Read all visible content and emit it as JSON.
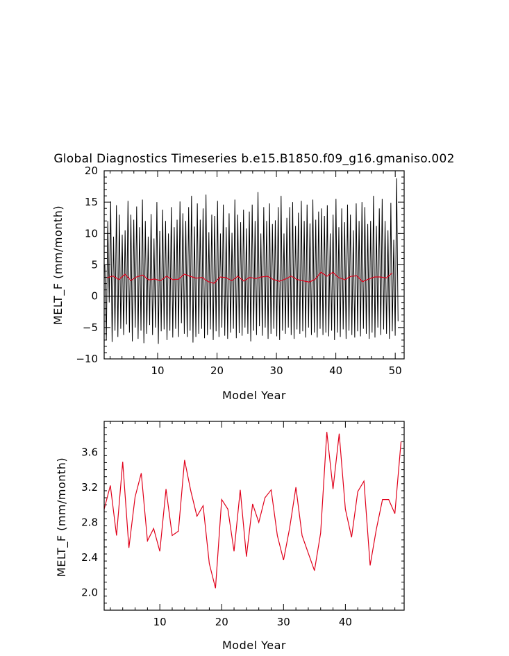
{
  "title": "Global Diagnostics Timeseries b.e15.B1850.f09_g16.gmaniso.002",
  "colors": {
    "monthly": "#000000",
    "annual": "#e0001a",
    "axis": "#000000"
  },
  "chart_data": [
    {
      "type": "line",
      "xlabel": "Model Year",
      "ylabel": "MELT_F (mm/month)",
      "xlim": [
        1,
        51.5
      ],
      "ylim": [
        -10,
        20
      ],
      "xticks": [
        "10",
        "20",
        "30",
        "40",
        "50"
      ],
      "yticks": [
        "−10",
        "−5",
        "0",
        "5",
        "10",
        "15",
        "20"
      ],
      "zero_line": true,
      "monthly_peaks": [
        5.0,
        12.0,
        15.1,
        9.5,
        14.5,
        13.0,
        9.8,
        10.5,
        15.2,
        13.0,
        12.2,
        14.3,
        11.0,
        15.4,
        12.0,
        9.5,
        13.1,
        9.2,
        15.0,
        10.4,
        13.8,
        12.0,
        10.0,
        14.2,
        11.0,
        12.2,
        15.1,
        13.2,
        12.0,
        14.2,
        16.0,
        11.1,
        14.8,
        12.2,
        14.0,
        16.2,
        10.2,
        13.0,
        12.8,
        15.2,
        10.0,
        14.6,
        11.0,
        13.2,
        10.1,
        15.4,
        13.0,
        11.8,
        13.8,
        10.8,
        13.5,
        14.6,
        12.0,
        16.6,
        10.0,
        14.2,
        12.0,
        14.8,
        11.5,
        12.1,
        14.2,
        16.0,
        10.0,
        12.5,
        14.2,
        15.0,
        11.2,
        13.3,
        15.2,
        12.0,
        14.6,
        11.6,
        15.4,
        12.2,
        13.5,
        14.0,
        12.8,
        14.5,
        10.0,
        13.0,
        15.5,
        11.0,
        14.0,
        11.8,
        14.6,
        13.0,
        10.5,
        14.8,
        12.0,
        15.0,
        14.2,
        11.5,
        12.0,
        16.0,
        11.2,
        14.0,
        15.5,
        12.0,
        10.5,
        14.9,
        9.0,
        18.8
      ],
      "monthly_troughs": [
        -7.0,
        -1.0,
        -7.3,
        -5.5,
        -6.5,
        -5.2,
        -6.2,
        -4.5,
        -5.8,
        -7.2,
        -5.0,
        -6.8,
        -5.5,
        -7.5,
        -6.0,
        -4.6,
        -6.2,
        -5.0,
        -7.6,
        -5.6,
        -5.3,
        -7.0,
        -5.5,
        -6.6,
        -5.2,
        -6.5,
        -4.3,
        -6.0,
        -6.5,
        -5.5,
        -7.4,
        -6.5,
        -6.0,
        -5.2,
        -6.7,
        -6.2,
        -5.3,
        -7.0,
        -5.6,
        -6.5,
        -5.0,
        -6.3,
        -6.8,
        -5.8,
        -5.2,
        -6.7,
        -5.9,
        -6.3,
        -5.0,
        -6.0,
        -7.2,
        -5.5,
        -6.2,
        -4.8,
        -6.3,
        -5.0,
        -6.8,
        -6.0,
        -5.2,
        -6.4,
        -7.0,
        -5.5,
        -6.0,
        -5.0,
        -6.2,
        -6.8,
        -5.3,
        -6.0,
        -5.6,
        -6.6,
        -5.0,
        -6.2,
        -5.8,
        -6.6,
        -5.2,
        -6.2,
        -5.8,
        -6.4,
        -5.5,
        -7.0,
        -5.8,
        -6.5,
        -5.3,
        -6.8,
        -5.5,
        -6.2,
        -6.6,
        -5.6,
        -6.4,
        -5.2,
        -6.0,
        -6.8,
        -5.8,
        -6.6,
        -5.0,
        -6.2,
        -5.3,
        -6.0,
        -6.8,
        -5.6,
        -6.3,
        -4.0
      ],
      "series": [
        {
          "values": [
            2.95,
            3.22,
            2.65,
            3.49,
            2.51,
            3.09,
            3.36,
            2.59,
            2.73,
            2.47,
            3.18,
            2.65,
            2.7,
            3.51,
            3.16,
            2.87,
            2.99,
            2.33,
            2.05,
            3.06,
            2.95,
            2.47,
            3.17,
            2.41,
            3.01,
            2.8,
            3.08,
            3.17,
            2.65,
            2.37,
            2.74,
            3.2,
            2.65,
            2.45,
            2.25,
            2.68,
            3.83,
            3.18,
            3.81,
            2.95,
            2.63,
            3.15,
            3.27,
            2.31,
            2.72,
            3.06,
            3.06,
            2.9,
            3.72
          ]
        }
      ]
    },
    {
      "type": "line",
      "xlabel": "Model Year",
      "ylabel": "MELT_F (mm/month)",
      "xlim": [
        1,
        49.5
      ],
      "ylim": [
        1.8,
        3.95
      ],
      "xticks": [
        "10",
        "20",
        "30",
        "40"
      ],
      "yticks": [
        "2.0",
        "2.4",
        "2.8",
        "3.2",
        "3.6"
      ],
      "series": [
        {
          "values": [
            2.95,
            3.22,
            2.65,
            3.49,
            2.51,
            3.09,
            3.36,
            2.59,
            2.73,
            2.47,
            3.18,
            2.65,
            2.7,
            3.51,
            3.16,
            2.87,
            2.99,
            2.33,
            2.05,
            3.06,
            2.95,
            2.47,
            3.17,
            2.41,
            3.01,
            2.8,
            3.08,
            3.17,
            2.65,
            2.37,
            2.74,
            3.2,
            2.65,
            2.45,
            2.25,
            2.68,
            3.83,
            3.18,
            3.81,
            2.95,
            2.63,
            3.15,
            3.27,
            2.31,
            2.72,
            3.06,
            3.06,
            2.9,
            3.72
          ]
        }
      ]
    }
  ]
}
